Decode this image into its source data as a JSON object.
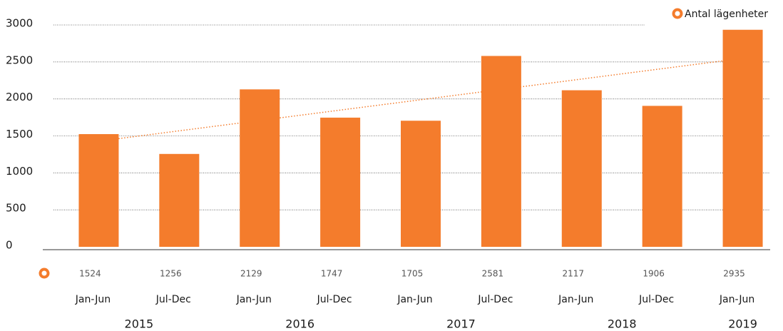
{
  "chart_data": {
    "type": "bar",
    "series": [
      {
        "name": "Antal lägenheter",
        "color": "#f47c2c",
        "values": [
          1524,
          1256,
          2129,
          1747,
          1705,
          2581,
          2117,
          1906,
          2935
        ]
      }
    ],
    "categories": [
      "Jan-Jun",
      "Jul-Dec",
      "Jan-Jun",
      "Jul-Dec",
      "Jan-Jun",
      "Jul-Dec",
      "Jan-Jun",
      "Jul-Dec",
      "Jan-Jun"
    ],
    "category_years": [
      "2015",
      "2015",
      "2016",
      "2016",
      "2017",
      "2017",
      "2018",
      "2018",
      "2019"
    ],
    "ylim": [
      0,
      3000
    ],
    "yticks": [
      0,
      500,
      1000,
      1500,
      2000,
      2500,
      3000
    ],
    "grid": true,
    "trendline": true,
    "data_table": true,
    "legend": "top-right"
  }
}
